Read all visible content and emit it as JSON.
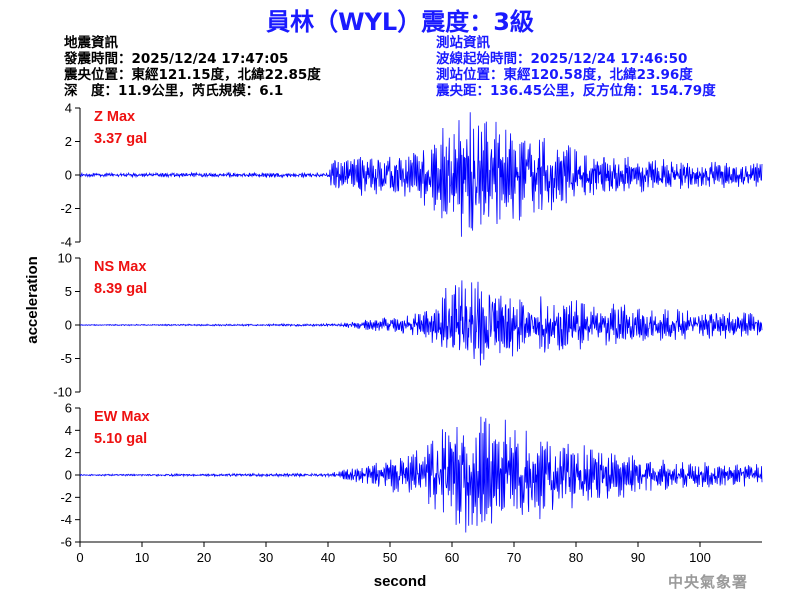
{
  "header": {
    "title": "員林（WYL）震度：3級",
    "event_info": {
      "heading": "地震資訊",
      "origin_time": "發震時間：2025/12/24 17:47:05",
      "epicenter": "震央位置：東經121.15度，北緯22.85度",
      "depth_magnitude": "深　度：11.9公里，芮氏規模：6.1"
    },
    "station_info": {
      "heading": "測站資訊",
      "wave_start": "波線起始時間：2025/12/24 17:46:50",
      "station_location": "測站位置：東經120.58度，北緯23.96度",
      "distance_azimuth": "震央距：136.45公里，反方位角：154.79度"
    }
  },
  "footer": {
    "agency": "中央氣象署"
  },
  "chart_data": {
    "type": "line",
    "xlabel": "second",
    "ylabel": "acceleration",
    "xlim": [
      0,
      110
    ],
    "x_ticks": [
      0,
      10,
      20,
      30,
      40,
      50,
      60,
      70,
      80,
      90,
      100
    ],
    "x_tick_labels": [
      "0",
      "10",
      "20",
      "30",
      "40",
      "50",
      "60",
      "70",
      "80",
      "90",
      "100"
    ],
    "line_color": "#0000ff",
    "label_color": "#ee1111",
    "channels": [
      {
        "label": "Z Max",
        "max_value": "3.37 gal",
        "ylim": [
          -4,
          4
        ],
        "y_ticks": [
          -4,
          -2,
          0,
          2,
          4
        ],
        "y_tick_labels": [
          "-4",
          "-2",
          "0",
          "2",
          "4"
        ],
        "envelope": [
          [
            0,
            0.08
          ],
          [
            40,
            0.12
          ],
          [
            41,
            0.9
          ],
          [
            48,
            1.0
          ],
          [
            55,
            1.3
          ],
          [
            60,
            2.7
          ],
          [
            62,
            3.1
          ],
          [
            66,
            2.6
          ],
          [
            70,
            2.2
          ],
          [
            75,
            1.8
          ],
          [
            80,
            1.3
          ],
          [
            90,
            0.9
          ],
          [
            100,
            0.7
          ],
          [
            110,
            0.6
          ]
        ]
      },
      {
        "label": "NS Max",
        "max_value": "8.39 gal",
        "ylim": [
          -10,
          10
        ],
        "y_ticks": [
          -10,
          -5,
          0,
          5,
          10
        ],
        "y_tick_labels": [
          "-10",
          "-5",
          "0",
          "5",
          "10"
        ],
        "envelope": [
          [
            0,
            0.05
          ],
          [
            42,
            0.15
          ],
          [
            45,
            0.6
          ],
          [
            50,
            1.0
          ],
          [
            55,
            1.5
          ],
          [
            58,
            3.0
          ],
          [
            60,
            6.0
          ],
          [
            62,
            5.5
          ],
          [
            66,
            5.0
          ],
          [
            70,
            4.0
          ],
          [
            75,
            3.5
          ],
          [
            80,
            3.0
          ],
          [
            90,
            2.3
          ],
          [
            100,
            1.8
          ],
          [
            110,
            1.5
          ]
        ]
      },
      {
        "label": "EW Max",
        "max_value": "5.10 gal",
        "ylim": [
          -6,
          6
        ],
        "y_ticks": [
          -6,
          -4,
          -2,
          0,
          2,
          4,
          6
        ],
        "y_tick_labels": [
          "-6",
          "-4",
          "-2",
          "0",
          "2",
          "4",
          "6"
        ],
        "envelope": [
          [
            0,
            0.05
          ],
          [
            40,
            0.12
          ],
          [
            45,
            0.6
          ],
          [
            50,
            1.2
          ],
          [
            55,
            1.8
          ],
          [
            58,
            3.0
          ],
          [
            60,
            4.0
          ],
          [
            65,
            4.3
          ],
          [
            70,
            3.8
          ],
          [
            75,
            3.0
          ],
          [
            80,
            2.2
          ],
          [
            90,
            1.4
          ],
          [
            100,
            0.9
          ],
          [
            110,
            0.8
          ]
        ]
      }
    ]
  }
}
